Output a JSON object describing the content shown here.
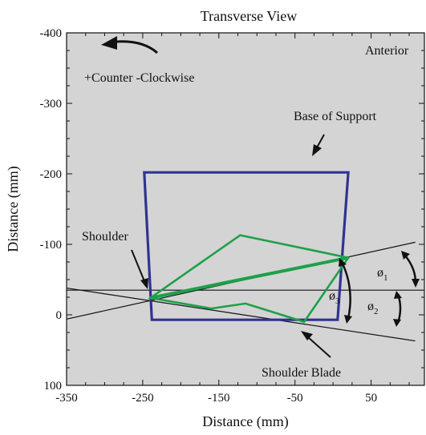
{
  "chart_data": {
    "type": "line",
    "title": "Transverse View",
    "xlabel": "Distance (mm)",
    "ylabel": "Distance (mm)",
    "xlim": [
      -350,
      120
    ],
    "ylim": [
      -400,
      100
    ],
    "y_inverted": true,
    "x_ticks": [
      -350,
      -250,
      -150,
      -50,
      50
    ],
    "x_tick_labels": [
      "-350",
      "-250",
      "-150",
      "-50",
      "50"
    ],
    "y_ticks": [
      -400,
      -300,
      -200,
      -100,
      0,
      100
    ],
    "y_tick_labels": [
      "-400",
      "-300",
      "-200",
      "-100",
      "0",
      "100"
    ],
    "background": "#d4d4d4",
    "grid": false,
    "series": [
      {
        "name": "Base of Support",
        "color": "#2f3391",
        "closed": true,
        "x": [
          -248,
          20,
          6,
          -238
        ],
        "y": [
          -202,
          -202,
          7,
          7
        ]
      },
      {
        "color": "#1ea04a",
        "closed": true,
        "x": [
          -240,
          -122,
          20,
          -38,
          -115,
          -160
        ],
        "y": [
          -24,
          -113,
          -81,
          10,
          -16,
          -9
        ]
      },
      {
        "color": "#1ea04a",
        "closed": false,
        "x": [
          -240,
          20
        ],
        "y": [
          -24,
          -81
        ]
      }
    ],
    "reference_lines": [
      {
        "x": [
          -350,
          120
        ],
        "y": [
          -35,
          -35
        ],
        "color": "#111111"
      },
      {
        "x": [
          -350,
          108
        ],
        "y": [
          6,
          -103
        ],
        "color": "#111111"
      },
      {
        "x": [
          -350,
          108
        ],
        "y": [
          -38,
          37
        ],
        "color": "#111111"
      },
      {
        "x": [
          -240,
          20
        ],
        "y": [
          -24,
          -81
        ],
        "color": "#111111"
      }
    ],
    "annotations": [
      {
        "text": "Anterior"
      },
      {
        "text": "+Counter -Clockwise"
      },
      {
        "text": "Base of Support"
      },
      {
        "text": "Shoulder"
      },
      {
        "text": "Shoulder Blade"
      },
      {
        "text": "ø1",
        "symbol": "ø",
        "subscript": "1"
      },
      {
        "text": "ø2",
        "symbol": "ø",
        "subscript": "2"
      },
      {
        "text": "ø3",
        "symbol": "ø",
        "subscript": "3"
      }
    ]
  }
}
